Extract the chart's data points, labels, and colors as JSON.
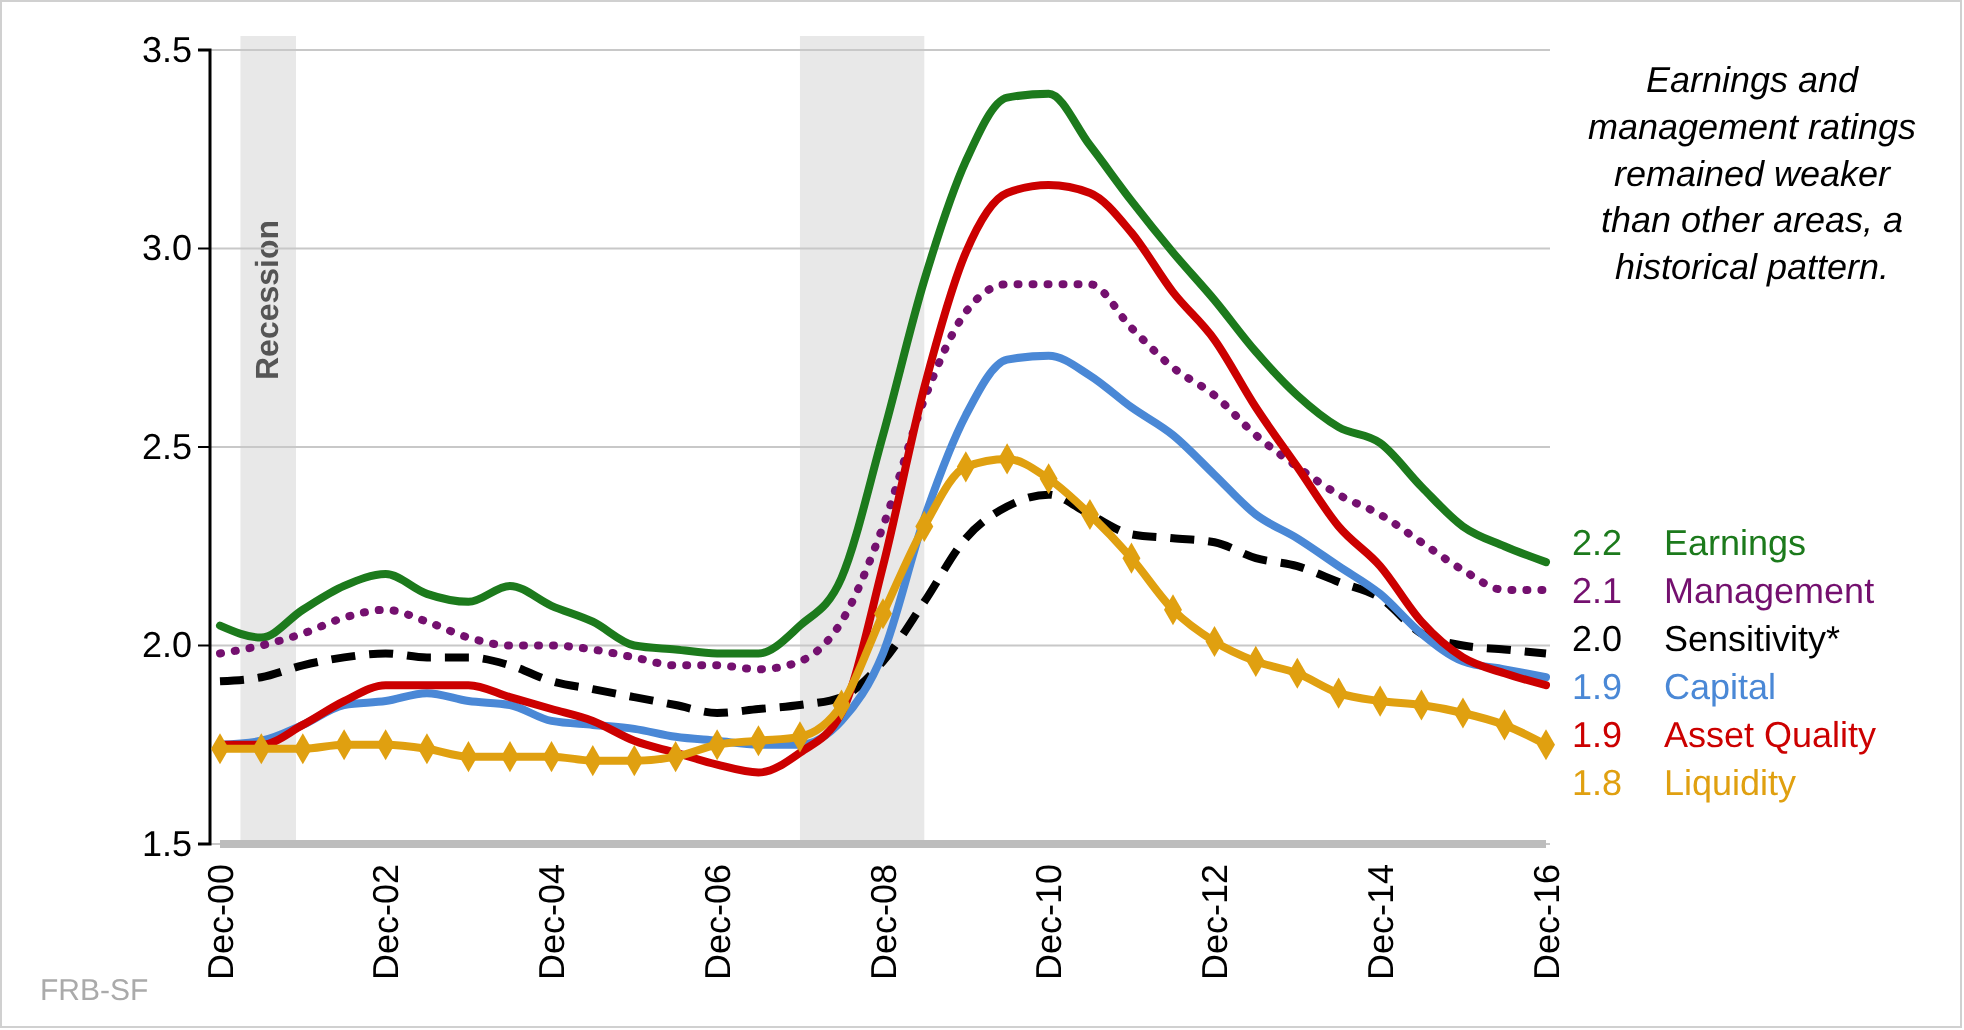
{
  "chart_data": {
    "type": "line",
    "x": [
      "2000-12",
      "2001-06",
      "2001-12",
      "2002-06",
      "2002-12",
      "2003-06",
      "2003-12",
      "2004-06",
      "2004-12",
      "2005-06",
      "2005-12",
      "2006-06",
      "2006-12",
      "2007-06",
      "2007-12",
      "2008-06",
      "2008-12",
      "2009-06",
      "2009-12",
      "2010-06",
      "2010-12",
      "2011-06",
      "2011-12",
      "2012-06",
      "2012-12",
      "2013-06",
      "2013-12",
      "2014-06",
      "2014-12",
      "2015-06",
      "2015-12",
      "2016-06",
      "2016-12"
    ],
    "series": [
      {
        "name": "Earnings",
        "color": "#1c7a1c",
        "line_style": "solid",
        "values": [
          2.05,
          2.02,
          2.09,
          2.15,
          2.18,
          2.13,
          2.11,
          2.15,
          2.1,
          2.06,
          2.0,
          1.99,
          1.98,
          1.98,
          2.05,
          2.17,
          2.53,
          2.92,
          3.22,
          3.38,
          3.39,
          3.26,
          3.12,
          2.99,
          2.87,
          2.74,
          2.63,
          2.55,
          2.51,
          2.4,
          2.3,
          2.25,
          2.21
        ],
        "value_labels": [
          null,
          null,
          null,
          null,
          null,
          null,
          null,
          null,
          null,
          null,
          null,
          null,
          null,
          null,
          null,
          null,
          null,
          null,
          null,
          null,
          null,
          null,
          null,
          null,
          null,
          null,
          null,
          null,
          null,
          null,
          null,
          null,
          "2.2"
        ]
      },
      {
        "name": "Management",
        "color": "#74106f",
        "line_style": "dotted",
        "values": [
          1.98,
          2.0,
          2.03,
          2.07,
          2.09,
          2.06,
          2.02,
          2.0,
          2.0,
          1.99,
          1.97,
          1.95,
          1.95,
          1.94,
          1.96,
          2.06,
          2.3,
          2.62,
          2.84,
          2.91,
          2.91,
          2.91,
          2.8,
          2.7,
          2.63,
          2.53,
          2.45,
          2.38,
          2.33,
          2.26,
          2.19,
          2.14,
          2.14
        ],
        "value_labels": [
          null,
          null,
          null,
          null,
          null,
          null,
          null,
          null,
          null,
          null,
          null,
          null,
          null,
          null,
          null,
          null,
          null,
          null,
          null,
          null,
          null,
          null,
          null,
          null,
          null,
          null,
          null,
          null,
          null,
          null,
          null,
          null,
          "2.1"
        ]
      },
      {
        "name": "Sensitivity*",
        "color": "#000000",
        "line_style": "dashed",
        "values": [
          1.91,
          1.92,
          1.95,
          1.97,
          1.98,
          1.97,
          1.97,
          1.95,
          1.91,
          1.89,
          1.87,
          1.85,
          1.83,
          1.84,
          1.85,
          1.87,
          1.96,
          2.11,
          2.27,
          2.35,
          2.38,
          2.33,
          2.28,
          2.27,
          2.26,
          2.22,
          2.2,
          2.16,
          2.12,
          2.03,
          2.0,
          1.99,
          1.98
        ],
        "value_labels": [
          null,
          null,
          null,
          null,
          null,
          null,
          null,
          null,
          null,
          null,
          null,
          null,
          null,
          null,
          null,
          null,
          null,
          null,
          null,
          null,
          null,
          null,
          null,
          null,
          null,
          null,
          null,
          null,
          null,
          null,
          null,
          null,
          "2.0"
        ]
      },
      {
        "name": "Capital",
        "color": "#4a88d6",
        "line_style": "solid",
        "values": [
          1.75,
          1.76,
          1.8,
          1.85,
          1.86,
          1.88,
          1.86,
          1.85,
          1.81,
          1.8,
          1.79,
          1.77,
          1.76,
          1.75,
          1.75,
          1.81,
          1.98,
          2.32,
          2.58,
          2.72,
          2.73,
          2.68,
          2.6,
          2.53,
          2.43,
          2.33,
          2.27,
          2.2,
          2.13,
          2.03,
          1.96,
          1.94,
          1.92
        ],
        "value_labels": [
          null,
          null,
          null,
          null,
          null,
          null,
          null,
          null,
          null,
          null,
          null,
          null,
          null,
          null,
          null,
          null,
          null,
          null,
          null,
          null,
          null,
          null,
          null,
          null,
          null,
          null,
          null,
          null,
          null,
          null,
          null,
          null,
          "1.9"
        ]
      },
      {
        "name": "Asset Quality",
        "color": "#cc0000",
        "line_style": "solid",
        "values": [
          1.75,
          1.75,
          1.8,
          1.86,
          1.9,
          1.9,
          1.9,
          1.87,
          1.84,
          1.81,
          1.76,
          1.73,
          1.7,
          1.68,
          1.73,
          1.83,
          2.2,
          2.65,
          2.99,
          3.14,
          3.16,
          3.14,
          3.04,
          2.89,
          2.77,
          2.6,
          2.45,
          2.3,
          2.2,
          2.06,
          1.97,
          1.93,
          1.9
        ],
        "value_labels": [
          null,
          null,
          null,
          null,
          null,
          null,
          null,
          null,
          null,
          null,
          null,
          null,
          null,
          null,
          null,
          null,
          null,
          null,
          null,
          null,
          null,
          null,
          null,
          null,
          null,
          null,
          null,
          null,
          null,
          null,
          null,
          null,
          "1.9"
        ]
      },
      {
        "name": "Liquidity",
        "color": "#e0a010",
        "line_style": "solid",
        "marker": "diamond",
        "values": [
          1.74,
          1.74,
          1.74,
          1.75,
          1.75,
          1.74,
          1.72,
          1.72,
          1.72,
          1.71,
          1.71,
          1.72,
          1.75,
          1.76,
          1.77,
          1.85,
          2.08,
          2.3,
          2.45,
          2.47,
          2.42,
          2.33,
          2.22,
          2.09,
          2.01,
          1.96,
          1.93,
          1.88,
          1.86,
          1.85,
          1.83,
          1.8,
          1.75
        ],
        "value_labels": [
          null,
          null,
          null,
          null,
          null,
          null,
          null,
          null,
          null,
          null,
          null,
          null,
          null,
          null,
          null,
          null,
          null,
          null,
          null,
          null,
          null,
          null,
          null,
          null,
          null,
          null,
          null,
          null,
          null,
          null,
          null,
          null,
          "1.8"
        ]
      }
    ],
    "xlim": [
      "2000-12",
      "2016-12"
    ],
    "xticks": [
      {
        "value": "2000-12",
        "label": "Dec-00"
      },
      {
        "value": "2002-12",
        "label": "Dec-02"
      },
      {
        "value": "2004-12",
        "label": "Dec-04"
      },
      {
        "value": "2006-12",
        "label": "Dec-06"
      },
      {
        "value": "2008-12",
        "label": "Dec-08"
      },
      {
        "value": "2010-12",
        "label": "Dec-10"
      },
      {
        "value": "2012-12",
        "label": "Dec-12"
      },
      {
        "value": "2014-12",
        "label": "Dec-14"
      },
      {
        "value": "2016-12",
        "label": "Dec-16"
      }
    ],
    "ylim": [
      1.5,
      3.5
    ],
    "yticks": [
      1.5,
      {
        "value": 2,
        "label": "2.0"
      },
      2.5,
      {
        "value": 3,
        "label": "3.0"
      },
      3.5
    ],
    "grid": "y",
    "bands": [
      {
        "axis": "x",
        "from": "2001-03",
        "to": "2001-11",
        "label": "Recession",
        "color": "#e8e8e8"
      },
      {
        "axis": "x",
        "from": "2007-12",
        "to": "2009-06",
        "color": "#e8e8e8"
      }
    ],
    "annotations": [
      "Earnings and management ratings remained weaker than other areas, a historical pattern.",
      "FRB-SF"
    ]
  }
}
